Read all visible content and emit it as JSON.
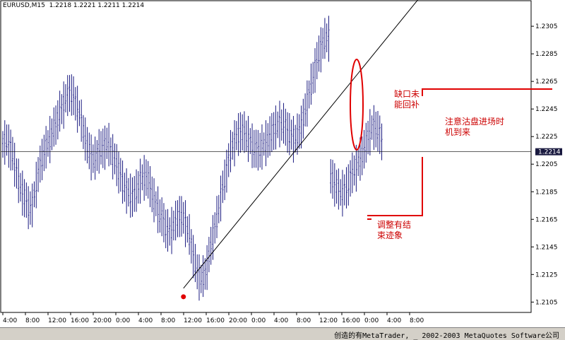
{
  "header": {
    "symbol": "EURUSD,M15",
    "ohlc": "1.2218 1.2221 1.2211 1.2214"
  },
  "status_bar": {
    "text": "创造的有MetaTrader, _ 2002-2003 MetaQuotes Software公司"
  },
  "colors": {
    "bars": "#1a1a80",
    "annotation": "#cc0000",
    "trendline": "#000000",
    "grid": "#000000"
  },
  "annotations": {
    "gap_note_line1": "缺口未",
    "gap_note_line2": "能回补",
    "entry_note_line1": "注意沽盘进场时",
    "entry_note_line2": "机到来",
    "correction_note_line1": "调整有结",
    "correction_note_line2": "束迹象"
  },
  "chart_data": {
    "type": "ohlc",
    "symbol": "EURUSD",
    "timeframe": "M15",
    "ylim": [
      1.2098,
      1.2323
    ],
    "y_ticks": [
      1.2305,
      1.2285,
      1.2265,
      1.2245,
      1.2225,
      1.2205,
      1.2185,
      1.2165,
      1.2145,
      1.2125,
      1.2105
    ],
    "y_tick_labels": [
      "1.2305",
      "1.2285",
      "1.2265",
      "1.2245",
      "1.2225",
      "1.2205",
      "1.2185",
      "1.2165",
      "1.2145",
      "1.2125",
      "1.2105"
    ],
    "x_tick_labels": [
      "4:00",
      "8:00",
      "12:00",
      "16:00",
      "20:00",
      "0:00",
      "4:00",
      "8:00",
      "12:00",
      "16:00",
      "20:00",
      "0:00",
      "4:00",
      "8:00",
      "12:00",
      "16:00",
      "0:00",
      "4:00",
      "8:00"
    ],
    "current_price": 1.2214,
    "current_price_label": "1.2214",
    "bars_mid": [
      1.222,
      1.2221,
      1.2222,
      1.2219,
      1.2216,
      1.2212,
      1.2205,
      1.2199,
      1.2193,
      1.2188,
      1.2185,
      1.2181,
      1.2178,
      1.2174,
      1.2174,
      1.2175,
      1.2183,
      1.2191,
      1.2198,
      1.2204,
      1.2209,
      1.2214,
      1.2217,
      1.222,
      1.2224,
      1.2227,
      1.2231,
      1.2234,
      1.2238,
      1.2243,
      1.2245,
      1.2249,
      1.2253,
      1.2254,
      1.2257,
      1.2256,
      1.2254,
      1.2249,
      1.2246,
      1.2242,
      1.2236,
      1.2229,
      1.2224,
      1.2218,
      1.2215,
      1.2211,
      1.2209,
      1.2209,
      1.2212,
      1.2215,
      1.2216,
      1.2217,
      1.2218,
      1.222,
      1.2219,
      1.2215,
      1.2211,
      1.2208,
      1.2205,
      1.22,
      1.2197,
      1.2192,
      1.2189,
      1.2186,
      1.2184,
      1.2183,
      1.2182,
      1.2183,
      1.2186,
      1.2189,
      1.2193,
      1.2195,
      1.2196,
      1.2196,
      1.2193,
      1.2189,
      1.2184,
      1.2179,
      1.2176,
      1.2173,
      1.2168,
      1.2166,
      1.2163,
      1.2159,
      1.2157,
      1.2156,
      1.2158,
      1.2161,
      1.2163,
      1.2166,
      1.2168,
      1.2167,
      1.2166,
      1.2163,
      1.2158,
      1.2153,
      1.2146,
      1.2139,
      1.2133,
      1.2127,
      1.2124,
      1.2122,
      1.2123,
      1.2126,
      1.2131,
      1.2139,
      1.2146,
      1.2153,
      1.2159,
      1.2166,
      1.2173,
      1.2181,
      1.2188,
      1.2194,
      1.2201,
      1.2208,
      1.2214,
      1.2219,
      1.2221,
      1.2225,
      1.2227,
      1.2229,
      1.2228,
      1.2228,
      1.2226,
      1.2224,
      1.2221,
      1.2219,
      1.2217,
      1.2216,
      1.2215,
      1.2216,
      1.2218,
      1.2219,
      1.2221,
      1.2223,
      1.2225,
      1.2228,
      1.223,
      1.2232,
      1.2233,
      1.2235,
      1.2234,
      1.2234,
      1.2232,
      1.2229,
      1.2227,
      1.2226,
      1.2224,
      1.2224,
      1.2226,
      1.2229,
      1.2233,
      1.2238,
      1.2244,
      1.225,
      1.2256,
      1.2262,
      1.2268,
      1.2274,
      1.228,
      1.2285,
      1.2289,
      1.2293,
      1.2295,
      1.2297,
      1.2297,
      1.2196,
      1.2194,
      1.2191,
      1.2189,
      1.2186,
      1.2185,
      1.2185,
      1.2186,
      1.2188,
      1.2191,
      1.2195,
      1.2198,
      1.2201,
      1.2203,
      1.2206,
      1.2209,
      1.2212,
      1.2216,
      1.222,
      1.2225,
      1.2229,
      1.2231,
      1.2232,
      1.2231,
      1.2229,
      1.2226,
      1.2222
    ],
    "trendline": {
      "start": {
        "bar": 92,
        "price": 1.2115
      },
      "end": {
        "bar": 217,
        "price": 1.2334
      }
    }
  }
}
